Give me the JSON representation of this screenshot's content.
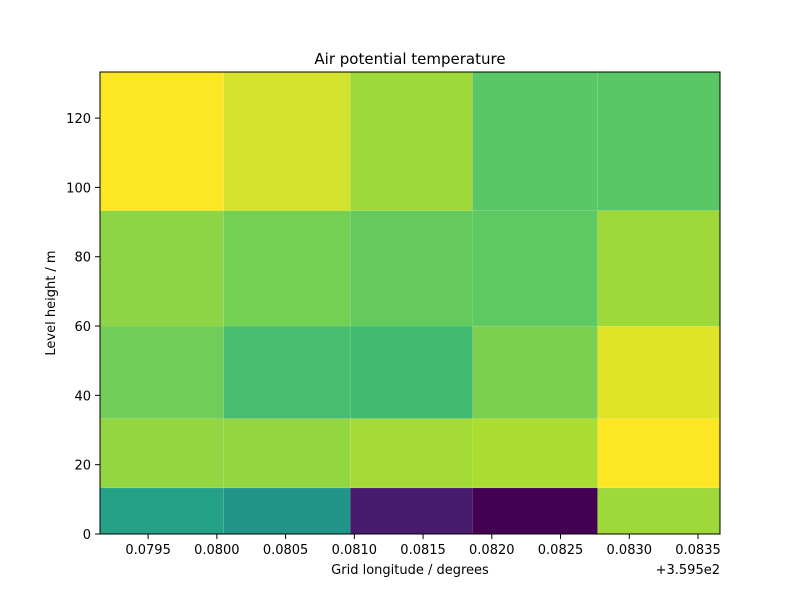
{
  "chart_data": {
    "type": "heatmap",
    "title": "Air potential temperature",
    "xlabel": "Grid longitude / degrees",
    "ylabel": "Level height / m",
    "x_offset_label": "+3.595e2",
    "x_edges": [
      0.07915,
      0.08005,
      0.08097,
      0.08186,
      0.08277,
      0.08366
    ],
    "y_edges": [
      0,
      13.3,
      33.3,
      60,
      93.3,
      133.3
    ],
    "xlim": [
      0.07915,
      0.08366
    ],
    "ylim": [
      0,
      133.3
    ],
    "x_ticks": [
      0.0795,
      0.08,
      0.0805,
      0.081,
      0.0815,
      0.082,
      0.0825,
      0.083,
      0.0835
    ],
    "x_tick_labels": [
      "0.0795",
      "0.0800",
      "0.0805",
      "0.0810",
      "0.0815",
      "0.0820",
      "0.0825",
      "0.0830",
      "0.0835"
    ],
    "y_ticks": [
      0,
      20,
      40,
      60,
      80,
      100,
      120
    ],
    "y_tick_labels": [
      "0",
      "20",
      "40",
      "60",
      "80",
      "100",
      "120"
    ],
    "values": [
      [
        0.58,
        0.52,
        0.1,
        0.0,
        0.86
      ],
      [
        0.84,
        0.84,
        0.87,
        0.88,
        1.0
      ],
      [
        0.78,
        0.7,
        0.69,
        0.8,
        0.96
      ],
      [
        0.83,
        0.79,
        0.76,
        0.75,
        0.86
      ],
      [
        1.0,
        0.94,
        0.86,
        0.74,
        0.74
      ]
    ],
    "colormap": "viridis",
    "grid": false,
    "legend": "none"
  }
}
